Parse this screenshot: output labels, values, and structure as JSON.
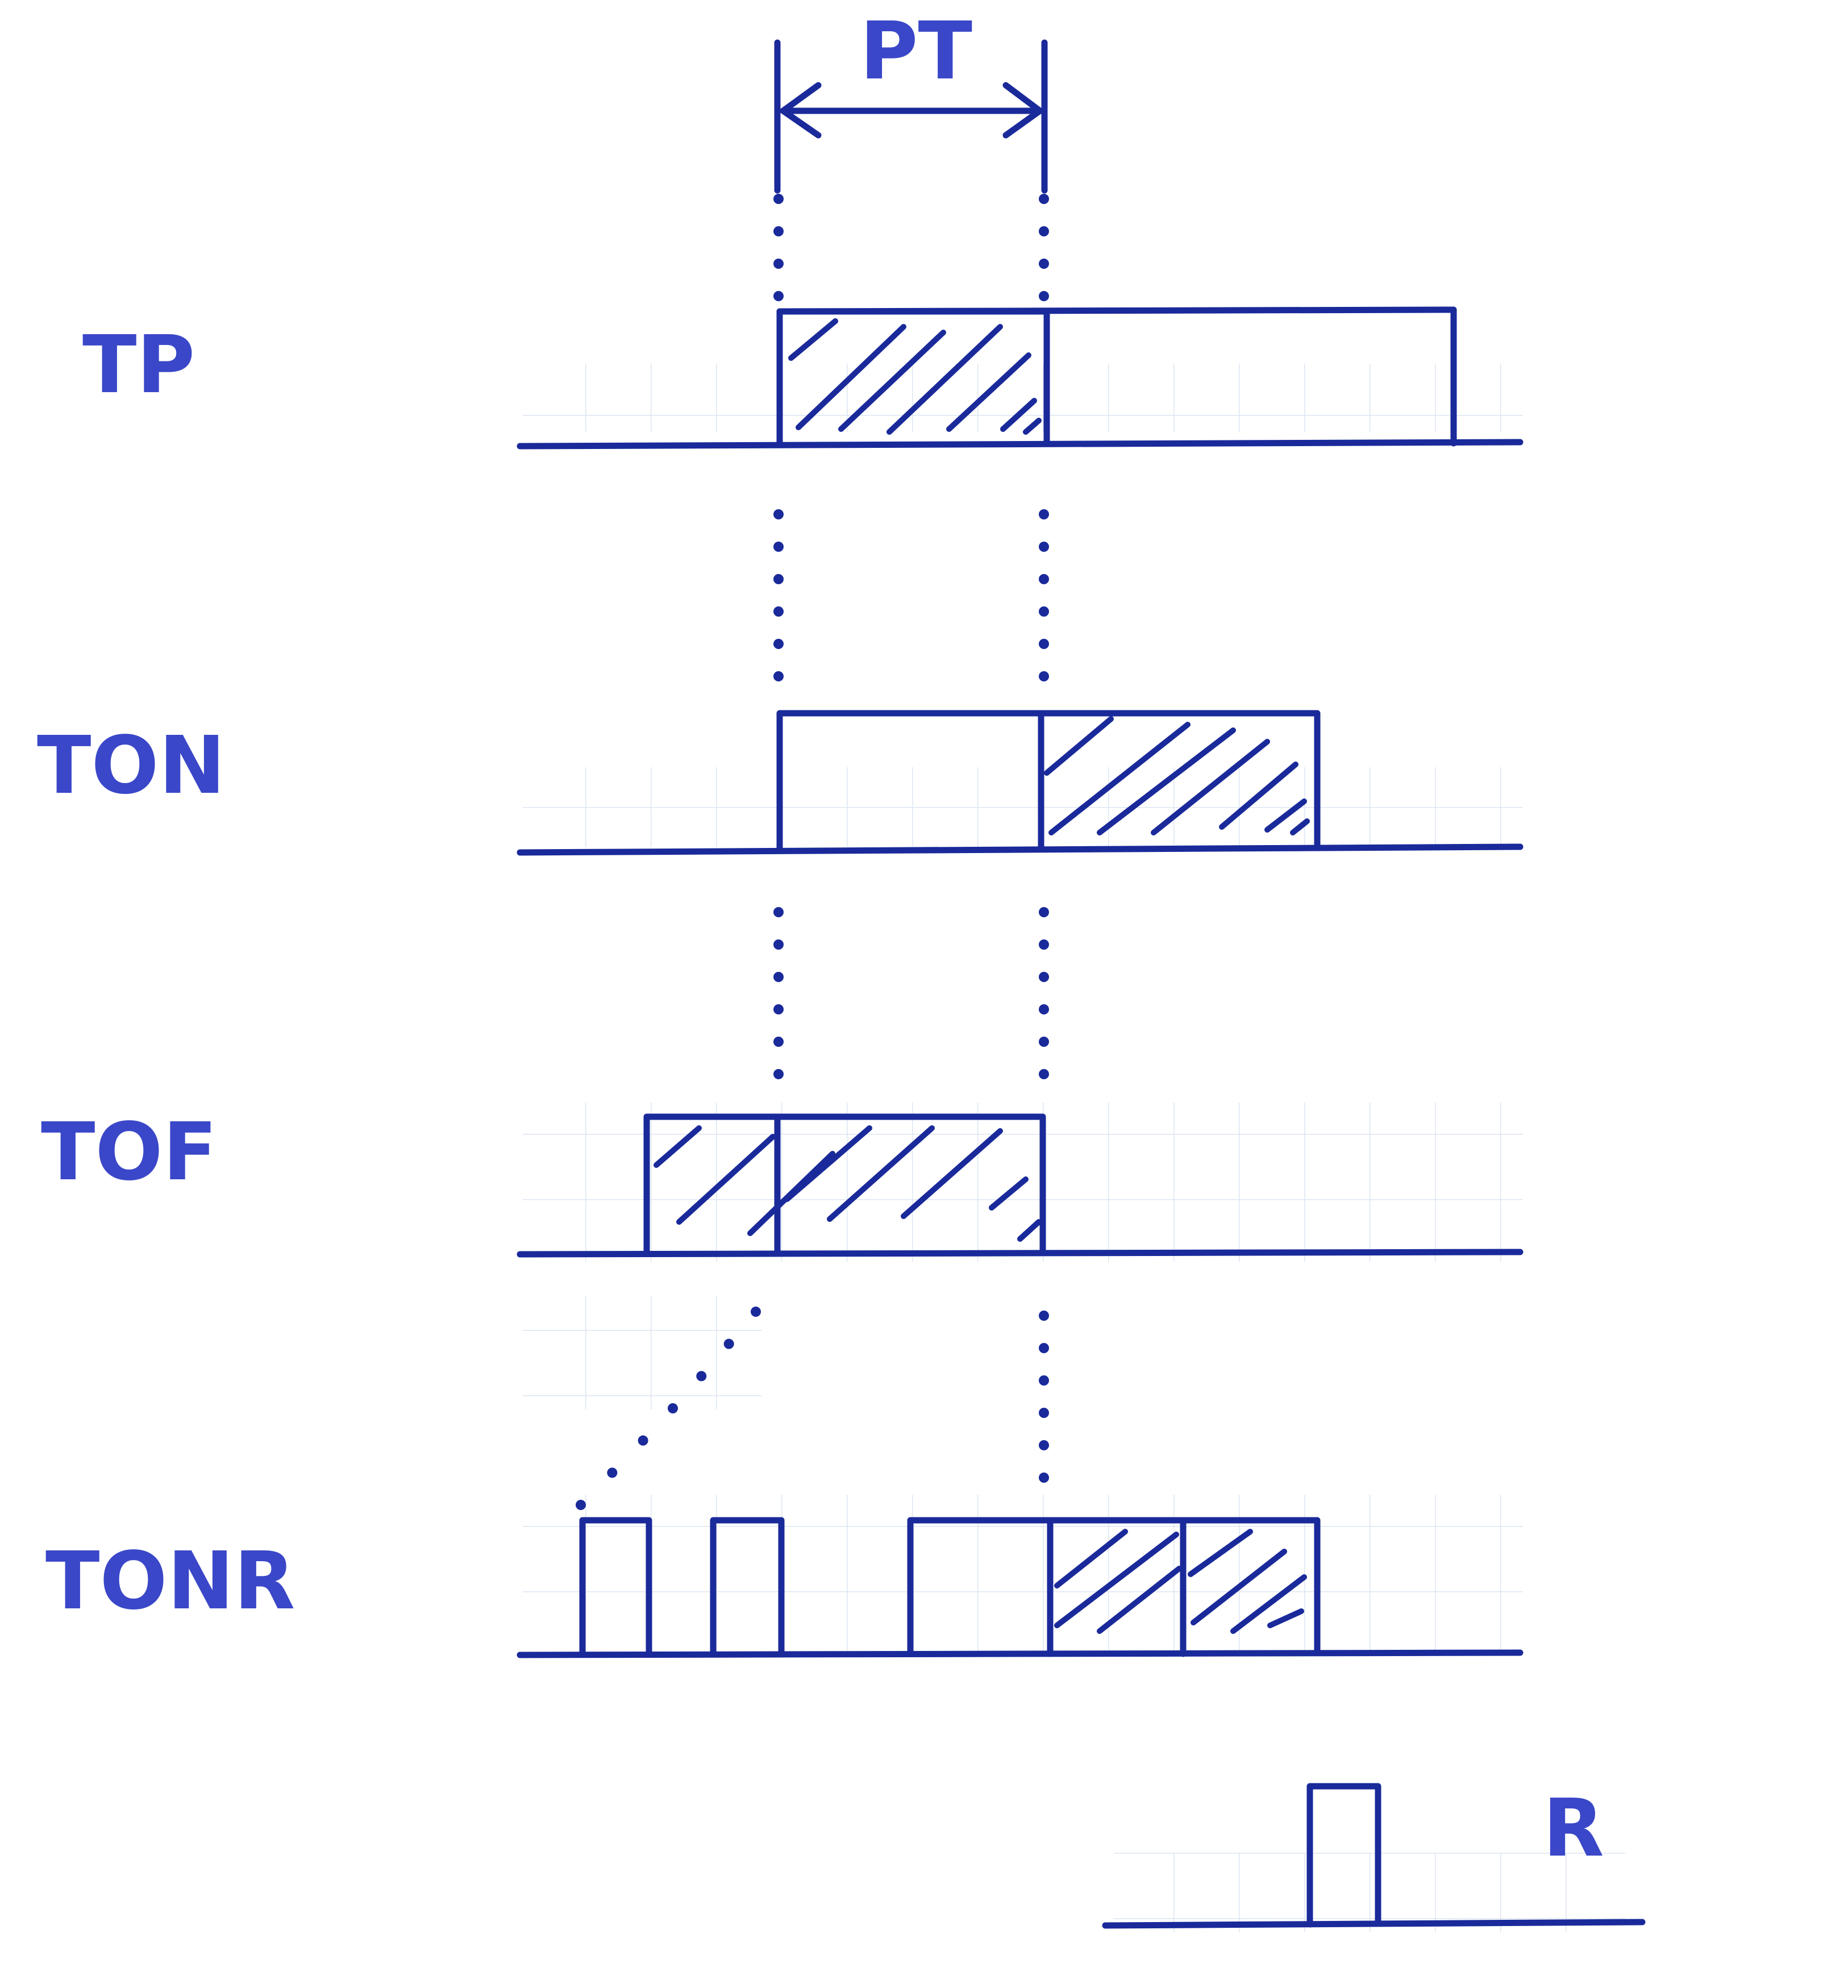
{
  "labels": {
    "pt": "PT",
    "tp": "TP",
    "ton": "TON",
    "tof": "TOF",
    "tonr": "TONR",
    "r": "R"
  },
  "colors": {
    "ink": "#1a2a9a",
    "text": "#3a47c8",
    "grid": "#dde6f2",
    "background": "#ffffff"
  },
  "timing_rows": [
    {
      "name": "TP",
      "input": "high",
      "output_hatched": "first PT interval"
    },
    {
      "name": "TON",
      "input": "high",
      "output_hatched": "after PT elapsed"
    },
    {
      "name": "TOF",
      "input": "high",
      "output_hatched": "until PT after input falls"
    },
    {
      "name": "TONR",
      "input": "pulses",
      "output_hatched": "after accumulated PT"
    },
    {
      "name": "R",
      "input": "reset pulse"
    }
  ]
}
